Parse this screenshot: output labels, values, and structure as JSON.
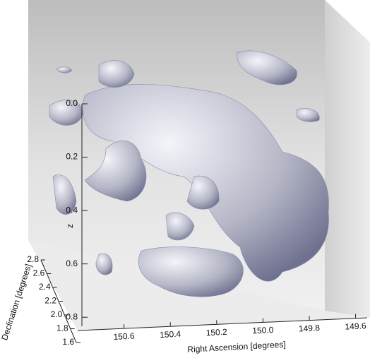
{
  "chart_data": {
    "type": "isosurface",
    "zlabel": "z",
    "xlabel": "Right Ascension [degrees]",
    "ylabel": "Declination [degrees]",
    "zlim": [
      0,
      0.9
    ],
    "zticks": [
      {
        "value": 0,
        "label": "0.0"
      },
      0.2,
      0.4,
      0.6,
      0.8
    ],
    "xlim": [
      150.8,
      149.55
    ],
    "xticks": [
      150.6,
      150.4,
      150.2,
      {
        "value": 150,
        "label": "150.0"
      },
      149.8,
      149.6
    ],
    "ylim": [
      1.6,
      2.8
    ],
    "yticks": [
      2.8,
      2.6,
      2.4,
      2.2,
      {
        "value": 2,
        "label": "2.0"
      },
      1.8,
      1.6
    ]
  }
}
